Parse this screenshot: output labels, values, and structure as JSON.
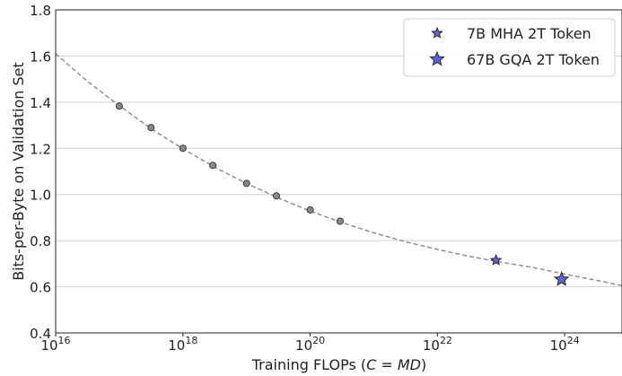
{
  "chart_data": {
    "type": "scatter",
    "xlabel": "Training FLOPs (C = MD)",
    "xlabel_parts": {
      "prefix": "Training FLOPs (",
      "C": "C",
      "eq": " = ",
      "MD": "MD",
      "suffix": ")"
    },
    "ylabel": "Bits-per-Byte on Validation Set",
    "x_scale": "log10",
    "xlim_exp": [
      16,
      24.9
    ],
    "ylim": [
      0.4,
      1.8
    ],
    "x_ticks": [
      {
        "base": "10",
        "exp": "16",
        "value_exp": 16
      },
      {
        "base": "10",
        "exp": "18",
        "value_exp": 18
      },
      {
        "base": "10",
        "exp": "20",
        "value_exp": 20
      },
      {
        "base": "10",
        "exp": "22",
        "value_exp": 22
      },
      {
        "base": "10",
        "exp": "24",
        "value_exp": 24
      }
    ],
    "y_ticks": [
      {
        "label": "0.4",
        "value": 0.4
      },
      {
        "label": "0.6",
        "value": 0.6
      },
      {
        "label": "0.8",
        "value": 0.8
      },
      {
        "label": "1.0",
        "value": 1.0
      },
      {
        "label": "1.2",
        "value": 1.2
      },
      {
        "label": "1.4",
        "value": 1.4
      },
      {
        "label": "1.6",
        "value": 1.6
      },
      {
        "label": "1.8",
        "value": 1.8
      }
    ],
    "grid": "horizontal",
    "legend_position": "top-right",
    "fit_curve": {
      "style": "dashed",
      "color": "#888888",
      "x_exp": [
        16.0,
        16.5,
        17.0,
        17.5,
        18.0,
        18.5,
        19.0,
        19.5,
        20.0,
        20.5,
        21.0,
        21.5,
        22.0,
        22.5,
        23.0,
        23.5,
        24.0,
        24.5,
        24.9
      ],
      "y": [
        1.61,
        1.49,
        1.385,
        1.285,
        1.198,
        1.118,
        1.048,
        0.985,
        0.928,
        0.878,
        0.834,
        0.795,
        0.762,
        0.732,
        0.706,
        0.684,
        0.655,
        0.628,
        0.605
      ]
    },
    "series": [
      {
        "marker": "circle",
        "color": "#888888",
        "points": [
          {
            "x_exp": 17.0,
            "y": 1.383
          },
          {
            "x_exp": 17.5,
            "y": 1.29
          },
          {
            "x_exp": 18.0,
            "y": 1.2
          },
          {
            "x_exp": 18.47,
            "y": 1.126
          },
          {
            "x_exp": 19.0,
            "y": 1.048
          },
          {
            "x_exp": 19.47,
            "y": 0.994
          },
          {
            "x_exp": 20.0,
            "y": 0.933
          },
          {
            "x_exp": 20.47,
            "y": 0.884
          }
        ]
      },
      {
        "name": "7B MHA 2T Token",
        "marker": "star",
        "color": "#5b63d6",
        "marker_size": "small",
        "points": [
          {
            "x_exp": 22.92,
            "y": 0.715
          }
        ]
      },
      {
        "name": "67B GQA 2T Token",
        "marker": "star",
        "color": "#5b63d6",
        "marker_size": "large",
        "points": [
          {
            "x_exp": 23.95,
            "y": 0.632
          }
        ]
      }
    ]
  }
}
